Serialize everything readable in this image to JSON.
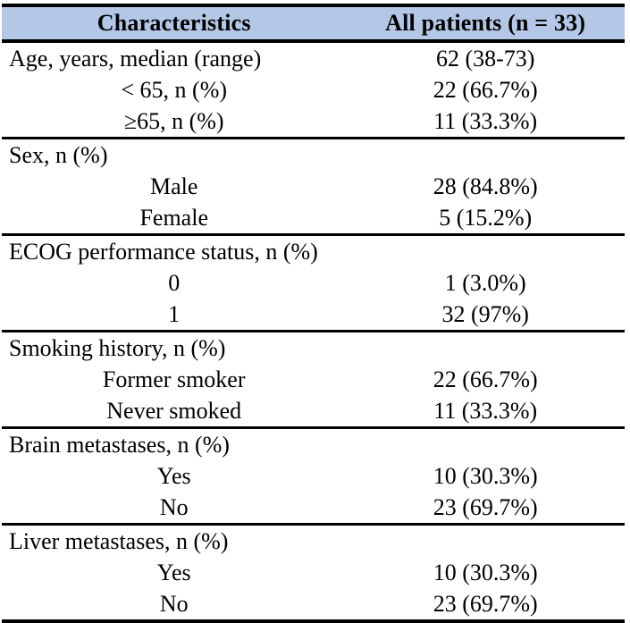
{
  "colors": {
    "header_background": "#B4C7E7",
    "border": "#000000",
    "text": "#000000",
    "page_background": "#FFFFFF"
  },
  "table": {
    "headers": {
      "characteristics": "Characteristics",
      "all_patients": "All patients (n = 33)"
    },
    "rows": [
      {
        "label": "Age, years, median (range)",
        "value": "62 (38-73)",
        "align": "left",
        "section": false
      },
      {
        "label": "< 65, n (%)",
        "value": "22 (66.7%)",
        "align": "center",
        "section": false
      },
      {
        "label": "≥65, n (%)",
        "value": "11 (33.3%)",
        "align": "center",
        "section": false
      },
      {
        "label": "Sex, n (%)",
        "value": "",
        "align": "left",
        "section": true
      },
      {
        "label": "Male",
        "value": "28 (84.8%)",
        "align": "center",
        "section": false
      },
      {
        "label": "Female",
        "value": "5 (15.2%)",
        "align": "center",
        "section": false
      },
      {
        "label": "ECOG performance status, n (%)",
        "value": "",
        "align": "left",
        "section": true
      },
      {
        "label": "0",
        "value": "1 (3.0%)",
        "align": "center",
        "section": false
      },
      {
        "label": "1",
        "value": "32 (97%)",
        "align": "center",
        "section": false
      },
      {
        "label": "Smoking history, n (%)",
        "value": "",
        "align": "left",
        "section": true
      },
      {
        "label": "Former smoker",
        "value": "22 (66.7%)",
        "align": "center",
        "section": false
      },
      {
        "label": "Never smoked",
        "value": "11 (33.3%)",
        "align": "center",
        "section": false
      },
      {
        "label": "Brain metastases, n (%)",
        "value": "",
        "align": "left",
        "section": true
      },
      {
        "label": "Yes",
        "value": "10 (30.3%)",
        "align": "center",
        "section": false
      },
      {
        "label": "No",
        "value": "23 (69.7%)",
        "align": "center",
        "section": false
      },
      {
        "label": "Liver metastases, n (%)",
        "value": "",
        "align": "left",
        "section": true
      },
      {
        "label": "Yes",
        "value": "10 (30.3%)",
        "align": "center",
        "section": false
      },
      {
        "label": "No",
        "value": "23 (69.7%)",
        "align": "center",
        "section": false
      }
    ]
  }
}
